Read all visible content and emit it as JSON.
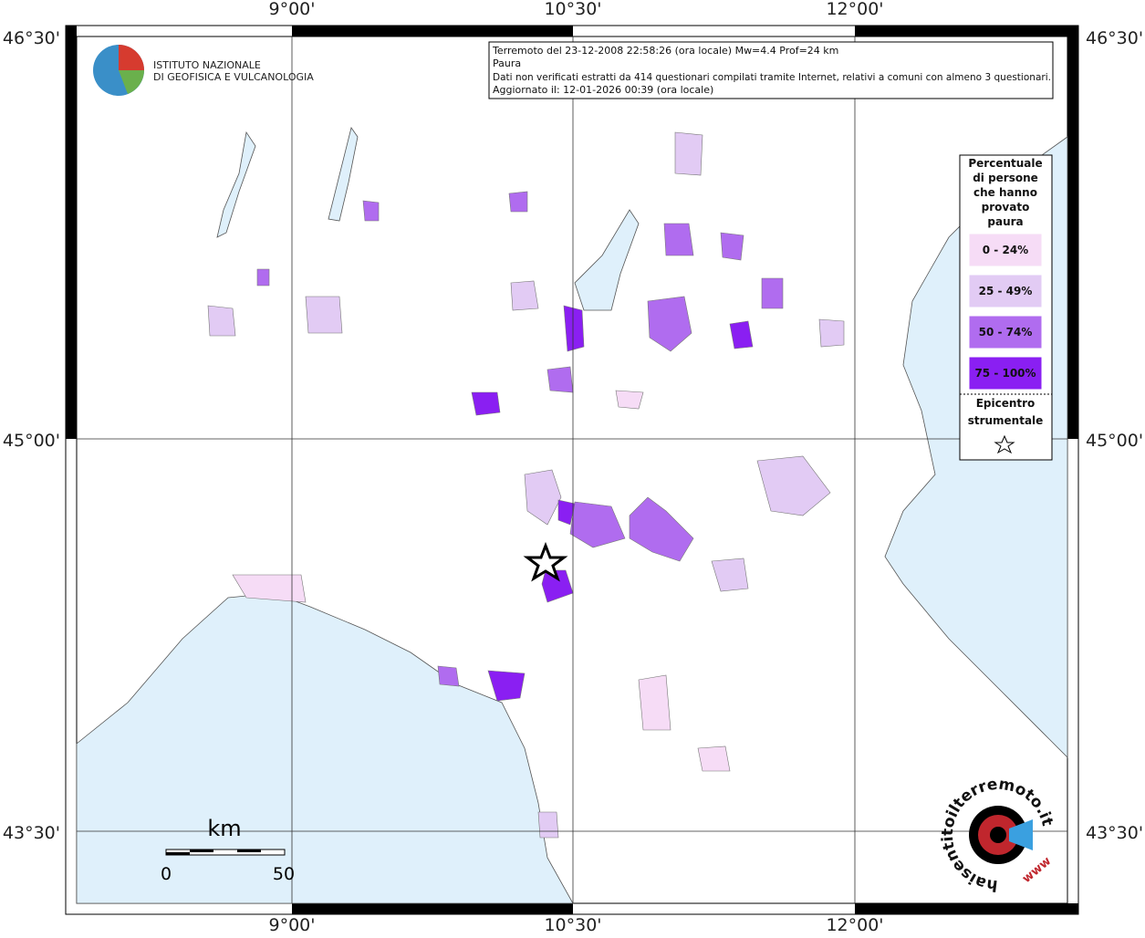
{
  "map": {
    "info": [
      "Terremoto del 23-12-2008 22:58:26 (ora locale) Mw=4.4 Prof=24 km",
      "Paura",
      "Dati non verificati estratti da 414 questionari compilati tramite Internet, relativi a comuni con almeno 3 questionari.",
      "Aggiornato il: 12-01-2026 00:39 (ora locale)"
    ],
    "lon_labels": [
      "9°00'",
      "10°30'",
      "12°00'"
    ],
    "lat_labels": [
      "46°30'",
      "45°00'",
      "43°30'"
    ],
    "logo": [
      "ISTITUTO NAZIONALE",
      "DI GEOFISICA E VULCANOLOGIA"
    ],
    "legend": {
      "title": [
        "Percentuale",
        "di persone",
        "che hanno",
        "provato",
        "paura"
      ],
      "classes": [
        {
          "label": "0 - 24%",
          "color": "#f6dcf6"
        },
        {
          "label": "25 - 49%",
          "color": "#e2cbf4"
        },
        {
          "label": "50 - 74%",
          "color": "#b06cef"
        },
        {
          "label": "75 - 100%",
          "color": "#8a1ff2"
        }
      ],
      "epicentre": [
        "Epicentro",
        "strumentale"
      ]
    },
    "scale": {
      "unit": "km",
      "labels": [
        "0",
        "50"
      ]
    },
    "site": [
      "haisentitoilterremoto.it",
      "www"
    ]
  }
}
